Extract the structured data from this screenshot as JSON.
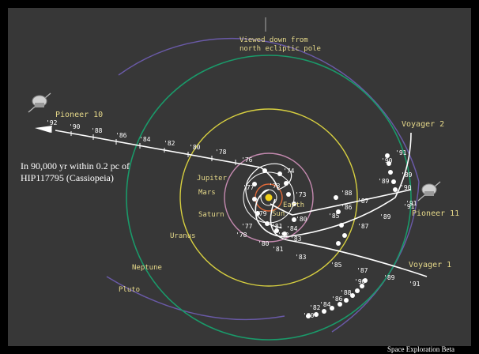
{
  "view_caption": [
    "Viewed down from",
    "north ecliptic pole"
  ],
  "note": [
    "In 90,000 yr within 0.2 pc of",
    "HIP117795 (Cassiopeia)"
  ],
  "footer": "Space Exploration Beta",
  "planets": [
    "Jupiter",
    "Mars",
    "Saturn",
    "Sun",
    "Earth",
    "Uranus",
    "Neptune",
    "Pluto"
  ],
  "spacecraft": [
    "Pioneer 10",
    "Voyager 2",
    "Pioneer 11",
    "Voyager 1"
  ],
  "pioneer10_years": [
    "'92",
    "'90",
    "'88",
    "'86",
    "'84",
    "'82",
    "'80",
    "'78",
    "'76",
    "'74"
  ],
  "inner_years": [
    "'73",
    "'79",
    "'77",
    "'77",
    "'78",
    "'80",
    "'81",
    "'82",
    "'84",
    "'83",
    "'81",
    "'80",
    "'73"
  ],
  "voyager2_years": [
    "'91",
    "'90",
    "'89",
    "'88",
    "'87",
    "'86",
    "'85",
    "'89",
    "'90",
    "'91"
  ],
  "pioneer11_years": [
    "'87",
    "'89",
    "'91"
  ],
  "voyager1_years": [
    "'83",
    "'85",
    "'87",
    "'89",
    "'91",
    "'90",
    "'88",
    "'86",
    "'84",
    "'82",
    "'80"
  ],
  "colors": {
    "background": "#373737",
    "orbit_earth": "#ffffff",
    "orbit_mars": "#e06a3a",
    "orbit_jupiter": "#ffffff",
    "orbit_saturn": "#c58ab0",
    "orbit_uranus": "#d8d040",
    "orbit_neptune": "#1a9a6a",
    "orbit_pluto": "#6a5aa8",
    "sun": "#f2d21a",
    "label": "#e6d98a"
  }
}
